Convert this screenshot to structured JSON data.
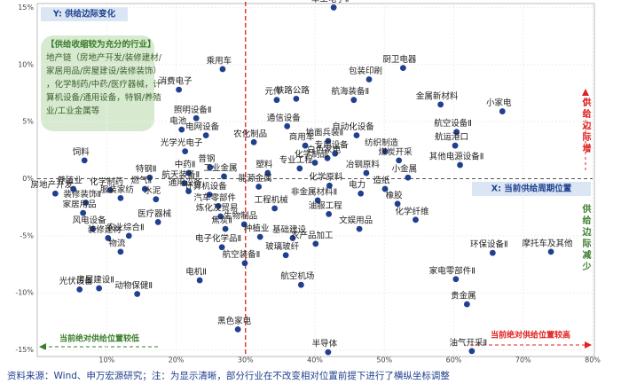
{
  "chart_data": {
    "type": "scatter",
    "y_label": "Y: 供给边际变化",
    "x_label": "X: 当前供给周期位置",
    "note": "【供给收缩较为充分的行业】\n地产链（房地产开发/装修建材/家居用品/房屋建设/装修装饰），化学制药/中药/医疗器械，计算机设备/通用设备，特钢/养殖业/工业金属等",
    "right_top": "供给边际增",
    "right_bottom": "供给边际减少",
    "bottom_left": "当前绝对供给位置较低",
    "bottom_right": "当前绝对供给位置较高",
    "source": "资料来源：Wind、申万宏源研究；注：为显示清晰，部分行业在不改变相对位置前提下进行了横纵坐标调整",
    "color": "#1f3f8f",
    "grid": true,
    "xlim": [
      0,
      80
    ],
    "ylim": [
      -15.5,
      15.5
    ],
    "xticks": [
      {
        "value": 10,
        "label": "10%"
      },
      {
        "value": 20,
        "label": "20%"
      },
      {
        "value": 30,
        "label": "30%"
      },
      {
        "value": 40,
        "label": "40%"
      },
      {
        "value": 50,
        "label": "50%"
      },
      {
        "value": 60,
        "label": "60%"
      },
      {
        "value": 70,
        "label": "70%"
      },
      {
        "value": 80,
        "label": "80%"
      }
    ],
    "yticks": [
      {
        "value": 15,
        "label": "15%"
      },
      {
        "value": 10,
        "label": "10%"
      },
      {
        "value": 5,
        "label": "5%"
      },
      {
        "value": 0,
        "label": "0%"
      },
      {
        "value": -5,
        "label": "-5%"
      },
      {
        "value": -10,
        "label": "-10%"
      },
      {
        "value": -15,
        "label": "-15%"
      }
    ],
    "labels": [
      "军工电子Ⅱ",
      "厨卫电器",
      "包装印刷",
      "乘用车",
      "消费电子",
      "元件",
      "铁路公路",
      "航海装备Ⅱ",
      "金属新材料",
      "小家电",
      "照明设备Ⅱ",
      "电池",
      "电网设备",
      "通信设备",
      "自动化设备",
      "地面兵装Ⅱ",
      "航空设备Ⅱ",
      "光学光电子",
      "农化制品",
      "商用车",
      "专用设备",
      "纺织制造",
      "航运港口",
      "饲料",
      "普钢",
      "中药Ⅱ",
      "白色家电",
      "煤炭开采",
      "其他电源设备Ⅱ",
      "专业工程",
      "化学制品",
      "塑料",
      "冶钢原料",
      "小金属",
      "养殖业",
      "房地产开发",
      "特钢Ⅱ",
      "燃气Ⅱ",
      "航天装备Ⅱ",
      "化学制药",
      "通用设备",
      "工业金属",
      "能源金属",
      "化学原料",
      "电力",
      "造纸",
      "非金属材料Ⅱ",
      "橡胶",
      "装修装饰Ⅱ",
      "服装家纺",
      "水泥",
      "计算机设备",
      "家居用品",
      "工程机械",
      "油服工程",
      "化学纤维",
      "汽车零部件",
      "风电设备",
      "医疗器械",
      "炼化及贸易",
      "焦炭Ⅱ",
      "生物制品",
      "基础建设",
      "文娱用品",
      "装修建材",
      "农业综合Ⅱ",
      "种植业",
      "农产品加工",
      "物流",
      "电子化学品Ⅱ",
      "玻璃玻纤",
      "环保设备Ⅱ",
      "摩托车及其他",
      "航空装备Ⅱ",
      "家电零部件Ⅱ",
      "光伏设备",
      "电机Ⅱ",
      "航空机场",
      "房屋建设Ⅱ",
      "动物保健Ⅱ",
      "贵金属",
      "黑色家电",
      "半导体",
      "油气开采Ⅱ"
    ],
    "x": [
      42.7,
      52.7,
      47.8,
      26.7,
      20.4,
      34.5,
      37.3,
      45.6,
      58.1,
      67.0,
      22.9,
      20.8,
      24.3,
      36.0,
      46.0,
      41.9,
      60.4,
      21.3,
      31.2,
      38.6,
      42.9,
      50.1,
      60.2,
      6.8,
      24.9,
      21.8,
      41.8,
      52.1,
      60.9,
      37.8,
      40.0,
      33.2,
      47.4,
      53.4,
      5.2,
      2.6,
      16.2,
      15.5,
      21.2,
      10.5,
      21.8,
      26.9,
      31.9,
      42.1,
      46.6,
      50.1,
      40.4,
      51.9,
      7.0,
      12.0,
      17.1,
      24.8,
      6.6,
      34.2,
      42.0,
      54.5,
      26.1,
      8.0,
      17.4,
      26.4,
      27.1,
      29.8,
      36.8,
      46.4,
      10.2,
      13.2,
      32.1,
      40.1,
      12.0,
      26.6,
      35.8,
      65.6,
      74.0,
      29.9,
      60.3,
      6.1,
      23.4,
      38.0,
      8.9,
      14.4,
      61.9,
      28.9,
      41.9,
      62.6
    ],
    "values": [
      15.0,
      9.7,
      8.7,
      9.6,
      7.8,
      6.9,
      7.0,
      6.9,
      6.5,
      5.9,
      5.3,
      4.3,
      3.8,
      4.6,
      3.8,
      3.3,
      4.1,
      2.4,
      3.2,
      2.9,
      2.2,
      2.4,
      2.9,
      1.6,
      1.0,
      0.5,
      1.8,
      1.6,
      1.2,
      0.9,
      1.4,
      0.5,
      0.5,
      0.1,
      -0.9,
      -1.3,
      0.1,
      -0.9,
      -0.4,
      -1.0,
      -1.1,
      0.2,
      -0.7,
      -0.6,
      -1.3,
      -0.9,
      -1.9,
      -2.2,
      -2.1,
      -1.7,
      -1.8,
      -1.4,
      -3.0,
      -2.6,
      -3.1,
      -3.6,
      -2.4,
      -4.4,
      -3.8,
      -3.3,
      -4.4,
      -4.0,
      -5.2,
      -4.4,
      -5.2,
      -5.0,
      -5.1,
      -5.7,
      -6.4,
      -6.0,
      -6.7,
      -6.5,
      -6.4,
      -7.4,
      -8.8,
      -9.7,
      -8.9,
      -9.3,
      -9.6,
      -10.1,
      -11.0,
      -13.2,
      -15.2,
      -15.1
    ]
  }
}
